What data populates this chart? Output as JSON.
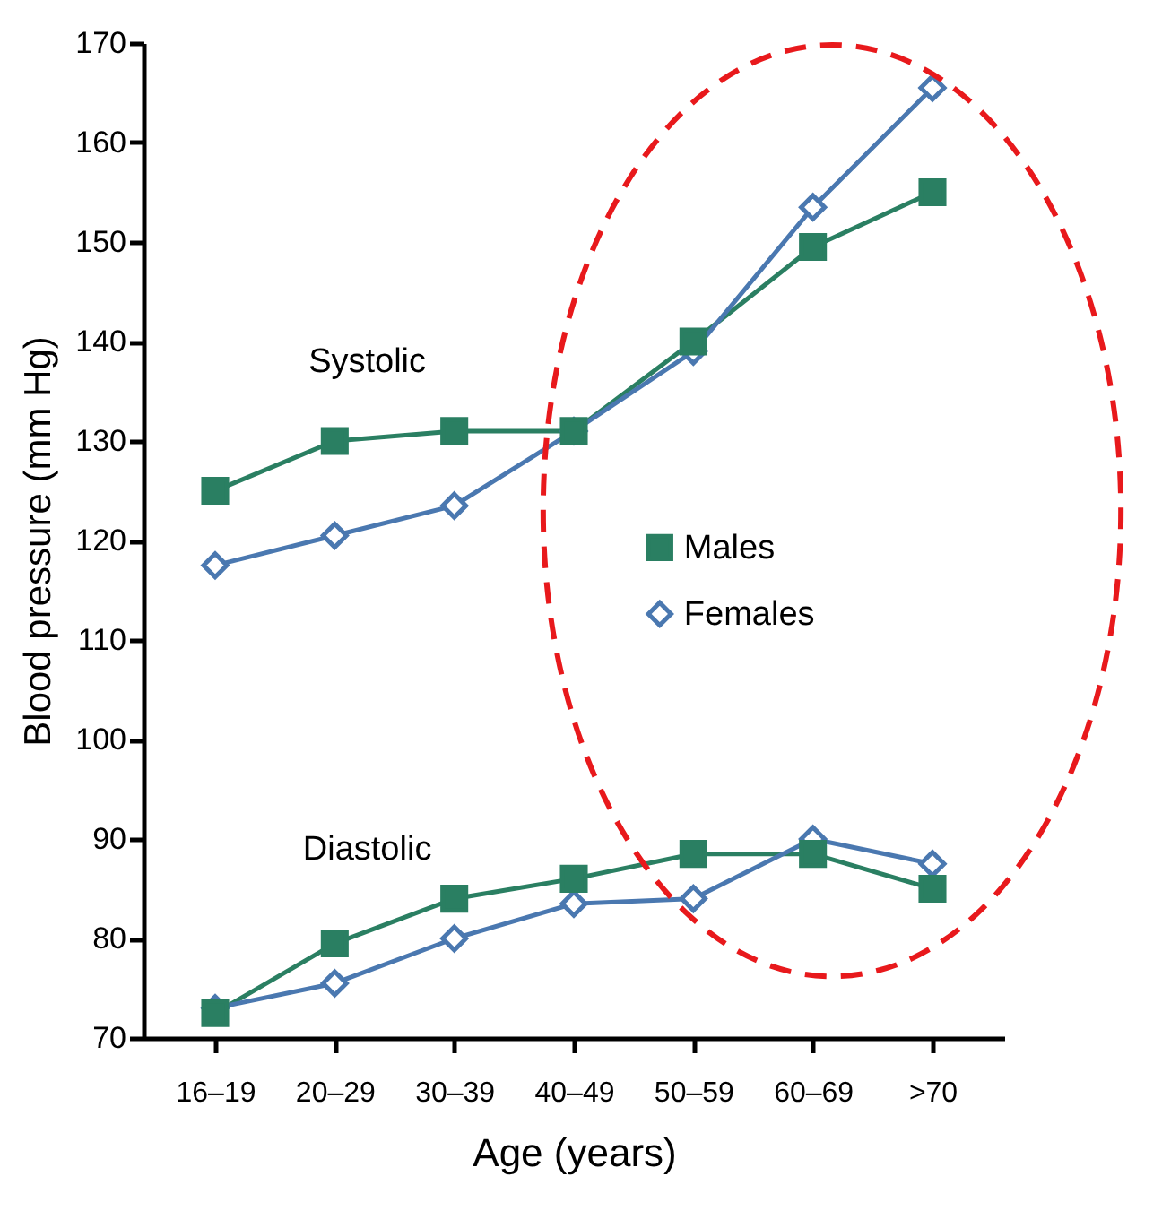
{
  "chart_data": {
    "type": "line",
    "xlabel": "Age (years)",
    "ylabel": "Blood pressure (mm Hg)",
    "categories": [
      "16–19",
      "20–29",
      "30–39",
      "40–49",
      "50–59",
      "60–69",
      ">70"
    ],
    "series": [
      {
        "name": "Males",
        "color": "#2a7f62",
        "marker": "square",
        "values": [
          125,
          130,
          131,
          131,
          140,
          149.5,
          155
        ]
      },
      {
        "name": "Females",
        "color": "#4a78b0",
        "marker": "diamond",
        "values": [
          117.5,
          120.5,
          123.5,
          131,
          139,
          153.5,
          165.5
        ]
      },
      {
        "color": "#2a7f62",
        "marker": "square",
        "values": [
          72.5,
          79.5,
          84,
          86,
          88.5,
          88.5,
          85
        ]
      },
      {
        "color": "#4a78b0",
        "marker": "diamond",
        "values": [
          73,
          75.5,
          80,
          83.5,
          84,
          90,
          87.5
        ]
      }
    ],
    "ylim": [
      70,
      170
    ],
    "yticks": [
      70,
      80,
      90,
      100,
      110,
      120,
      130,
      140,
      150,
      160,
      170
    ],
    "grid": false,
    "legend": "right",
    "line_style": "solid",
    "annotations": [
      "Systolic",
      "Diastolic"
    ]
  }
}
